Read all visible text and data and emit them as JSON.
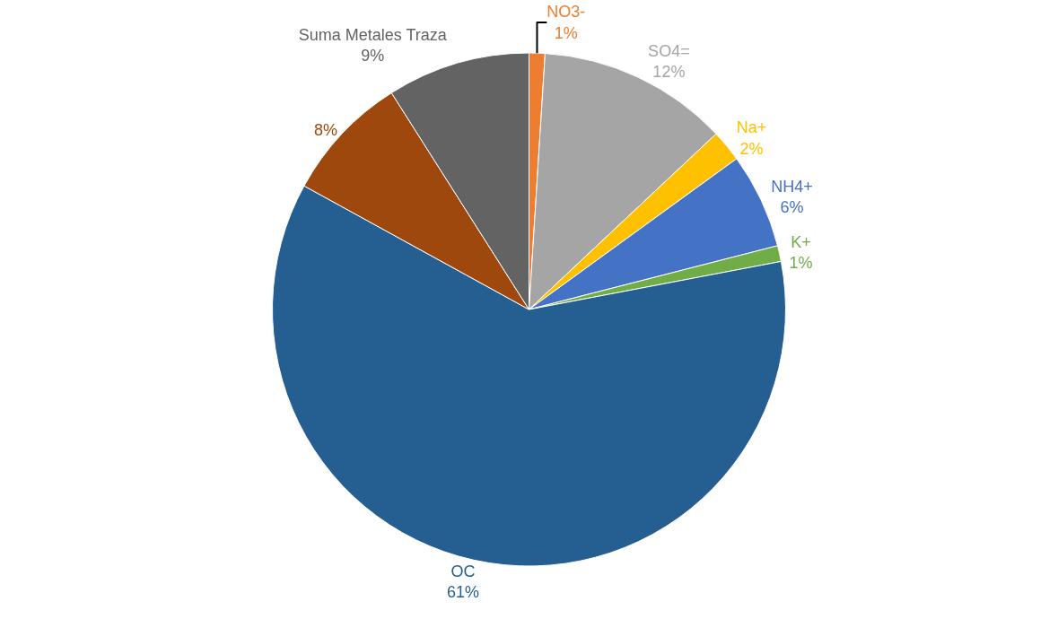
{
  "chart_data": {
    "type": "pie",
    "categories": [
      "NO3-",
      "SO4=",
      "Na+",
      "NH4+",
      "K+",
      "OC",
      null,
      "Suma Metales Traza"
    ],
    "values": [
      1,
      12,
      2,
      6,
      1,
      61,
      8,
      9
    ],
    "value_labels": [
      "1%",
      "12%",
      "2%",
      "6%",
      "1%",
      "61%",
      "8%",
      "9%"
    ],
    "colors": [
      "#ed7d31",
      "#a5a5a5",
      "#ffc000",
      "#4472c4",
      "#70ad47",
      "#255e91",
      "#9e480e",
      "#636363"
    ],
    "legend": false
  }
}
